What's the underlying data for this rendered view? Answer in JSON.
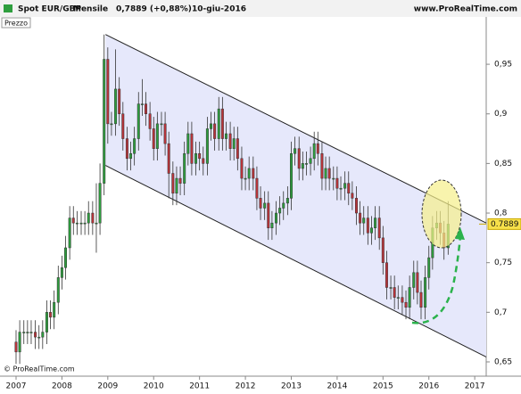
{
  "header": {
    "title": "Spot EUR/GBP",
    "period": "Mensile",
    "quote": "0,7889 (+0,88%)",
    "date": "10-giu-2016",
    "site": "www.ProRealTime.com",
    "panel_label": "Prezzo",
    "copyright": "© ProRealTime.com"
  },
  "chart_data": {
    "type": "candlestick",
    "x": [
      2007,
      2007.08,
      2007.17,
      2007.25,
      2007.33,
      2007.42,
      2007.5,
      2007.58,
      2007.67,
      2007.75,
      2007.83,
      2007.92,
      2008,
      2008.08,
      2008.17,
      2008.25,
      2008.33,
      2008.42,
      2008.5,
      2008.58,
      2008.67,
      2008.75,
      2008.83,
      2008.92,
      2009,
      2009.08,
      2009.17,
      2009.25,
      2009.33,
      2009.42,
      2009.5,
      2009.58,
      2009.67,
      2009.75,
      2009.83,
      2009.92,
      2010,
      2010.08,
      2010.17,
      2010.25,
      2010.33,
      2010.42,
      2010.5,
      2010.58,
      2010.67,
      2010.75,
      2010.83,
      2010.92,
      2011,
      2011.08,
      2011.17,
      2011.25,
      2011.33,
      2011.42,
      2011.5,
      2011.58,
      2011.67,
      2011.75,
      2011.83,
      2011.92,
      2012,
      2012.08,
      2012.17,
      2012.25,
      2012.33,
      2012.42,
      2012.5,
      2012.58,
      2012.67,
      2012.75,
      2012.83,
      2012.92,
      2013,
      2013.08,
      2013.17,
      2013.25,
      2013.33,
      2013.42,
      2013.5,
      2013.58,
      2013.67,
      2013.75,
      2013.83,
      2013.92,
      2014,
      2014.08,
      2014.17,
      2014.25,
      2014.33,
      2014.42,
      2014.5,
      2014.58,
      2014.67,
      2014.75,
      2014.83,
      2014.92,
      2015,
      2015.08,
      2015.17,
      2015.25,
      2015.33,
      2015.42,
      2015.5,
      2015.58,
      2015.67,
      2015.75,
      2015.83,
      2015.92,
      2016,
      2016.08,
      2016.17,
      2016.25,
      2016.33,
      2016.42
    ],
    "open": [
      0.67,
      0.66,
      0.68,
      0.68,
      0.68,
      0.68,
      0.675,
      0.675,
      0.68,
      0.7,
      0.695,
      0.71,
      0.735,
      0.745,
      0.765,
      0.795,
      0.79,
      0.79,
      0.79,
      0.79,
      0.8,
      0.79,
      0.79,
      0.83,
      0.955,
      0.89,
      0.89,
      0.925,
      0.9,
      0.875,
      0.855,
      0.86,
      0.875,
      0.91,
      0.91,
      0.9,
      0.885,
      0.865,
      0.89,
      0.89,
      0.87,
      0.84,
      0.82,
      0.835,
      0.83,
      0.86,
      0.88,
      0.85,
      0.86,
      0.855,
      0.85,
      0.885,
      0.89,
      0.875,
      0.905,
      0.875,
      0.88,
      0.865,
      0.875,
      0.855,
      0.835,
      0.835,
      0.845,
      0.835,
      0.815,
      0.805,
      0.81,
      0.785,
      0.79,
      0.8,
      0.805,
      0.81,
      0.815,
      0.86,
      0.865,
      0.845,
      0.85,
      0.85,
      0.855,
      0.87,
      0.86,
      0.835,
      0.845,
      0.835,
      0.835,
      0.825,
      0.825,
      0.83,
      0.82,
      0.815,
      0.8,
      0.79,
      0.795,
      0.78,
      0.785,
      0.795,
      0.775,
      0.75,
      0.725,
      0.725,
      0.715,
      0.715,
      0.71,
      0.705,
      0.725,
      0.74,
      0.72,
      0.705,
      0.735,
      0.755,
      0.785,
      0.79,
      0.78,
      0.765
    ],
    "high": [
      0.682,
      0.692,
      0.692,
      0.692,
      0.692,
      0.692,
      0.687,
      0.692,
      0.712,
      0.712,
      0.722,
      0.747,
      0.757,
      0.777,
      0.807,
      0.807,
      0.802,
      0.802,
      0.802,
      0.812,
      0.812,
      0.83,
      0.85,
      0.98,
      0.967,
      0.902,
      0.965,
      0.937,
      0.912,
      0.887,
      0.872,
      0.887,
      0.922,
      0.935,
      0.922,
      0.912,
      0.897,
      0.902,
      0.902,
      0.902,
      0.882,
      0.852,
      0.847,
      0.847,
      0.872,
      0.892,
      0.892,
      0.872,
      0.872,
      0.867,
      0.897,
      0.902,
      0.902,
      0.917,
      0.917,
      0.892,
      0.892,
      0.887,
      0.887,
      0.867,
      0.847,
      0.857,
      0.857,
      0.847,
      0.827,
      0.822,
      0.822,
      0.802,
      0.812,
      0.817,
      0.822,
      0.827,
      0.872,
      0.877,
      0.877,
      0.862,
      0.862,
      0.867,
      0.882,
      0.882,
      0.872,
      0.857,
      0.857,
      0.847,
      0.847,
      0.837,
      0.842,
      0.842,
      0.832,
      0.827,
      0.812,
      0.807,
      0.807,
      0.797,
      0.807,
      0.807,
      0.787,
      0.762,
      0.737,
      0.737,
      0.727,
      0.727,
      0.722,
      0.737,
      0.752,
      0.752,
      0.732,
      0.747,
      0.767,
      0.797,
      0.802,
      0.802,
      0.792,
      0.812
    ],
    "low": [
      0.648,
      0.648,
      0.668,
      0.668,
      0.668,
      0.663,
      0.663,
      0.663,
      0.668,
      0.683,
      0.683,
      0.698,
      0.723,
      0.733,
      0.753,
      0.778,
      0.778,
      0.778,
      0.778,
      0.778,
      0.778,
      0.76,
      0.778,
      0.818,
      0.87,
      0.878,
      0.878,
      0.888,
      0.863,
      0.843,
      0.843,
      0.848,
      0.863,
      0.898,
      0.888,
      0.873,
      0.853,
      0.853,
      0.878,
      0.858,
      0.815,
      0.808,
      0.808,
      0.818,
      0.818,
      0.848,
      0.838,
      0.838,
      0.843,
      0.838,
      0.838,
      0.873,
      0.863,
      0.863,
      0.863,
      0.863,
      0.853,
      0.853,
      0.843,
      0.823,
      0.823,
      0.823,
      0.823,
      0.803,
      0.793,
      0.793,
      0.773,
      0.773,
      0.778,
      0.788,
      0.793,
      0.798,
      0.803,
      0.848,
      0.833,
      0.833,
      0.838,
      0.838,
      0.843,
      0.848,
      0.823,
      0.823,
      0.823,
      0.823,
      0.813,
      0.813,
      0.813,
      0.808,
      0.803,
      0.788,
      0.778,
      0.778,
      0.768,
      0.768,
      0.773,
      0.763,
      0.738,
      0.713,
      0.713,
      0.703,
      0.703,
      0.698,
      0.693,
      0.693,
      0.713,
      0.708,
      0.693,
      0.693,
      0.723,
      0.743,
      0.773,
      0.768,
      0.753,
      0.758
    ],
    "close": [
      0.66,
      0.68,
      0.68,
      0.68,
      0.68,
      0.675,
      0.675,
      0.68,
      0.7,
      0.695,
      0.71,
      0.735,
      0.745,
      0.765,
      0.795,
      0.79,
      0.79,
      0.79,
      0.79,
      0.8,
      0.79,
      0.79,
      0.83,
      0.955,
      0.89,
      0.89,
      0.925,
      0.9,
      0.875,
      0.855,
      0.86,
      0.875,
      0.91,
      0.91,
      0.9,
      0.885,
      0.865,
      0.89,
      0.89,
      0.87,
      0.84,
      0.82,
      0.835,
      0.83,
      0.86,
      0.88,
      0.85,
      0.86,
      0.855,
      0.85,
      0.885,
      0.89,
      0.875,
      0.905,
      0.875,
      0.88,
      0.865,
      0.875,
      0.855,
      0.835,
      0.835,
      0.845,
      0.835,
      0.815,
      0.805,
      0.81,
      0.785,
      0.79,
      0.8,
      0.805,
      0.81,
      0.815,
      0.86,
      0.865,
      0.845,
      0.85,
      0.85,
      0.855,
      0.87,
      0.86,
      0.835,
      0.845,
      0.835,
      0.835,
      0.825,
      0.825,
      0.83,
      0.82,
      0.815,
      0.8,
      0.79,
      0.795,
      0.78,
      0.785,
      0.795,
      0.775,
      0.75,
      0.725,
      0.725,
      0.715,
      0.715,
      0.71,
      0.705,
      0.725,
      0.74,
      0.72,
      0.705,
      0.735,
      0.755,
      0.785,
      0.79,
      0.78,
      0.765,
      0.7889
    ],
    "up_color": "#2e9e3e",
    "down_color": "#b8343a",
    "last_value": 0.7889,
    "last_label": "0.7889",
    "channel": [
      {
        "x": [
          2008.95,
          2017.25
        ],
        "y": [
          0.98,
          0.79
        ]
      },
      {
        "x": [
          2008.95,
          2017.25
        ],
        "y": [
          0.848,
          0.655
        ]
      }
    ],
    "channel_color": "#222222",
    "channel_fill": "#e6e8fb",
    "xlim": [
      2006.65,
      2017.25
    ],
    "ylim": [
      0.6374,
      0.9968
    ],
    "xticks": [
      2007,
      2008,
      2009,
      2010,
      2011,
      2012,
      2013,
      2014,
      2015,
      2016,
      2017
    ],
    "yticks": [
      {
        "value": 0.65,
        "label": "0,65"
      },
      {
        "value": 0.7,
        "label": "0,7"
      },
      {
        "value": 0.75,
        "label": "0,75"
      },
      {
        "value": 0.8,
        "label": "0,8"
      },
      {
        "value": 0.85,
        "label": "0,85"
      },
      {
        "value": 0.9,
        "label": "0,9"
      },
      {
        "value": 0.95,
        "label": "0,95"
      }
    ]
  }
}
